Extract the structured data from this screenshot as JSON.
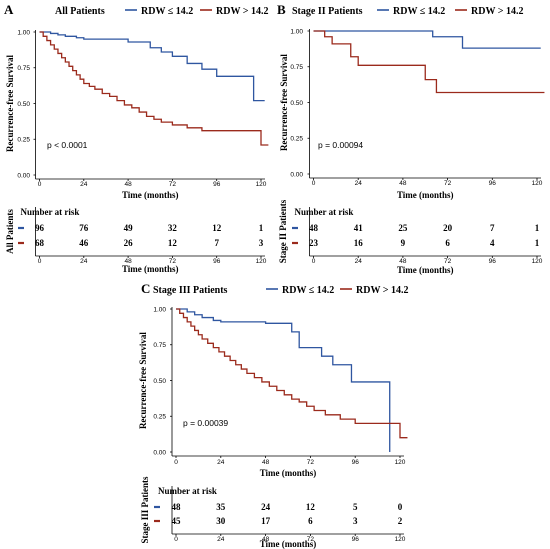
{
  "colors": {
    "low": "#2f56a0",
    "high": "#9b2a1c",
    "axis": "#000000"
  },
  "legend": {
    "low_label": "RDW ≤ 14.2",
    "high_label": "RDW > 14.2"
  },
  "chart_data": [
    {
      "type": "line",
      "panel": "A",
      "title": "All Patients",
      "xlabel": "Time (months)",
      "ylabel": "Recurrence-free Survival",
      "xlim": [
        0,
        120
      ],
      "ylim": [
        0,
        1
      ],
      "xticks": [
        "0",
        "24",
        "48",
        "72",
        "96",
        "120"
      ],
      "yticks": [
        "0.00",
        "0.25",
        "0.50",
        "0.75",
        "1.00"
      ],
      "pvalue": "p < 0.0001",
      "series": [
        {
          "name": "RDW ≤ 14.2",
          "x": [
            0,
            6,
            10,
            14,
            20,
            24,
            48,
            60,
            66,
            72,
            80,
            88,
            96,
            110,
            116,
            122
          ],
          "y": [
            1.0,
            0.99,
            0.98,
            0.97,
            0.96,
            0.95,
            0.93,
            0.89,
            0.86,
            0.83,
            0.78,
            0.74,
            0.69,
            0.69,
            0.52,
            0.52
          ]
        },
        {
          "name": "RDW > 14.2",
          "x": [
            0,
            2,
            4,
            6,
            8,
            10,
            12,
            14,
            16,
            18,
            20,
            22,
            24,
            27,
            30,
            34,
            38,
            42,
            46,
            50,
            54,
            58,
            62,
            66,
            72,
            80,
            88,
            104,
            120,
            124
          ],
          "y": [
            1.0,
            0.97,
            0.94,
            0.91,
            0.88,
            0.85,
            0.82,
            0.79,
            0.76,
            0.73,
            0.7,
            0.67,
            0.64,
            0.62,
            0.6,
            0.57,
            0.55,
            0.52,
            0.49,
            0.47,
            0.44,
            0.41,
            0.39,
            0.37,
            0.35,
            0.33,
            0.31,
            0.31,
            0.21,
            0.21
          ]
        }
      ],
      "risk_table": {
        "title": "Number at risk",
        "ylabel": "All Patients",
        "x": [
          0,
          24,
          48,
          72,
          96,
          120
        ],
        "rows": [
          {
            "name": "RDW ≤ 14.2",
            "values": [
              "96",
              "76",
              "49",
              "32",
              "12",
              "1"
            ]
          },
          {
            "name": "RDW > 14.2",
            "values": [
              "68",
              "46",
              "26",
              "12",
              "7",
              "3"
            ]
          }
        ],
        "xlabel": "Time (months)",
        "xticks": [
          "0",
          "24",
          "48",
          "72",
          "96",
          "120"
        ]
      }
    },
    {
      "type": "line",
      "panel": "B",
      "title": "Stage II Patients",
      "xlabel": "Time (months)",
      "ylabel": "Recurrence-free Survival",
      "xlim": [
        0,
        120
      ],
      "ylim": [
        0,
        1
      ],
      "xticks": [
        "0",
        "24",
        "48",
        "72",
        "96",
        "120"
      ],
      "yticks": [
        "0.00",
        "0.25",
        "0.50",
        "0.75",
        "1.00"
      ],
      "pvalue": "p = 0.00094",
      "series": [
        {
          "name": "RDW ≤ 14.2",
          "x": [
            0,
            64,
            80,
            122
          ],
          "y": [
            1.0,
            0.96,
            0.88,
            0.88
          ]
        },
        {
          "name": "RDW > 14.2",
          "x": [
            0,
            6,
            10,
            20,
            24,
            60,
            66,
            124
          ],
          "y": [
            1.0,
            0.96,
            0.91,
            0.82,
            0.76,
            0.66,
            0.57,
            0.57
          ]
        }
      ],
      "risk_table": {
        "title": "Number at risk",
        "ylabel": "Stage II Patients",
        "x": [
          0,
          24,
          48,
          72,
          96,
          120
        ],
        "rows": [
          {
            "name": "RDW ≤ 14.2",
            "values": [
              "48",
              "41",
              "25",
              "20",
              "7",
              "1"
            ]
          },
          {
            "name": "RDW > 14.2",
            "values": [
              "23",
              "16",
              "9",
              "6",
              "4",
              "1"
            ]
          }
        ],
        "xlabel": "Time (months)",
        "xticks": [
          "0",
          "24",
          "48",
          "72",
          "96",
          "120"
        ]
      }
    },
    {
      "type": "line",
      "panel": "C",
      "title": "Stage III Patients",
      "xlabel": "Time (months)",
      "ylabel": "Recurrence-free Survival",
      "xlim": [
        0,
        120
      ],
      "ylim": [
        0,
        1
      ],
      "xticks": [
        "0",
        "24",
        "48",
        "72",
        "96",
        "120"
      ],
      "yticks": [
        "0.00",
        "0.25",
        "0.50",
        "0.75",
        "1.00"
      ],
      "pvalue": "p = 0.00039",
      "series": [
        {
          "name": "RDW ≤ 14.2",
          "x": [
            0,
            6,
            10,
            14,
            20,
            24,
            48,
            62,
            66,
            78,
            84,
            94,
            102,
            114,
            114.5
          ],
          "y": [
            1.0,
            0.98,
            0.96,
            0.94,
            0.92,
            0.91,
            0.9,
            0.84,
            0.73,
            0.67,
            0.61,
            0.49,
            0.49,
            0.49,
            0.0
          ]
        },
        {
          "name": "RDW > 14.2",
          "x": [
            0,
            2,
            4,
            6,
            8,
            10,
            12,
            14,
            17,
            20,
            23,
            26,
            29,
            32,
            35,
            38,
            42,
            46,
            50,
            54,
            58,
            62,
            66,
            70,
            74,
            80,
            88,
            96,
            120,
            124
          ],
          "y": [
            1.0,
            0.97,
            0.94,
            0.91,
            0.88,
            0.85,
            0.82,
            0.79,
            0.76,
            0.73,
            0.7,
            0.67,
            0.64,
            0.61,
            0.58,
            0.55,
            0.52,
            0.49,
            0.46,
            0.43,
            0.4,
            0.37,
            0.35,
            0.32,
            0.29,
            0.26,
            0.23,
            0.2,
            0.1,
            0.1
          ]
        }
      ],
      "risk_table": {
        "title": "Number at risk",
        "ylabel": "Stage III Patients",
        "x": [
          0,
          24,
          48,
          72,
          96,
          120
        ],
        "rows": [
          {
            "name": "RDW ≤ 14.2",
            "values": [
              "48",
              "35",
              "24",
              "12",
              "5",
              "0"
            ]
          },
          {
            "name": "RDW > 14.2",
            "values": [
              "45",
              "30",
              "17",
              "6",
              "3",
              "2"
            ]
          }
        ],
        "xlabel": "Time (months)",
        "xticks": [
          "0",
          "24",
          "48",
          "72",
          "96",
          "120"
        ]
      }
    }
  ]
}
